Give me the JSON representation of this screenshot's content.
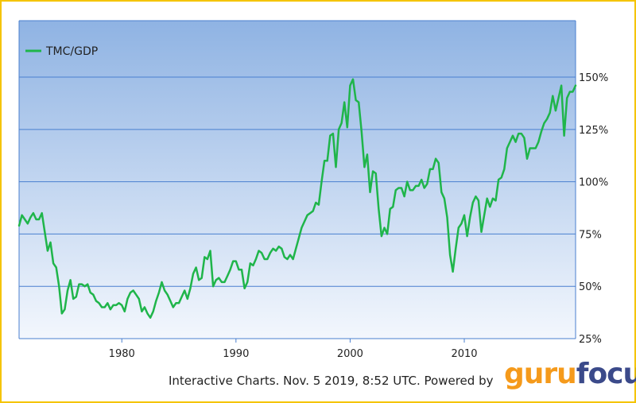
{
  "colors": {
    "line": "#1fb54a",
    "bg_top": "#8fb3e3",
    "bg_bottom": "#f3f7fd",
    "grid": "#4a7fcf",
    "frame": "#f5c400",
    "logo_guru": "#f59a1b",
    "logo_focus": "#3b4a8a"
  },
  "footer": {
    "text": "Interactive Charts. Nov. 5 2019, 8:52 UTC. Powered by"
  },
  "logo": {
    "part1": "guru",
    "part2": "focus"
  },
  "chart_data": {
    "type": "line",
    "title": "",
    "xlabel": "",
    "ylabel": "",
    "grid": true,
    "legend_position": "top-left",
    "xlim": [
      1971,
      2019.75
    ],
    "ylim": [
      25,
      177
    ],
    "x_ticks": [
      1980,
      1990,
      2000,
      2010
    ],
    "y_ticks": [
      25,
      50,
      75,
      100,
      125,
      150
    ],
    "y_tick_labels": [
      "25%",
      "50%",
      "75%",
      "100%",
      "125%",
      "150%"
    ],
    "series": [
      {
        "name": "TMC/GDP",
        "x": [
          1971.0,
          1971.25,
          1971.5,
          1971.75,
          1972.0,
          1972.25,
          1972.5,
          1972.75,
          1973.0,
          1973.25,
          1973.5,
          1973.75,
          1974.0,
          1974.25,
          1974.5,
          1974.75,
          1975.0,
          1975.25,
          1975.5,
          1975.75,
          1976.0,
          1976.25,
          1976.5,
          1976.75,
          1977.0,
          1977.25,
          1977.5,
          1977.75,
          1978.0,
          1978.25,
          1978.5,
          1978.75,
          1979.0,
          1979.25,
          1979.5,
          1979.75,
          1980.0,
          1980.25,
          1980.5,
          1980.75,
          1981.0,
          1981.25,
          1981.5,
          1981.75,
          1982.0,
          1982.25,
          1982.5,
          1982.75,
          1983.0,
          1983.25,
          1983.5,
          1983.75,
          1984.0,
          1984.25,
          1984.5,
          1984.75,
          1985.0,
          1985.25,
          1985.5,
          1985.75,
          1986.0,
          1986.25,
          1986.5,
          1986.75,
          1987.0,
          1987.25,
          1987.5,
          1987.75,
          1988.0,
          1988.25,
          1988.5,
          1988.75,
          1989.0,
          1989.25,
          1989.5,
          1989.75,
          1990.0,
          1990.25,
          1990.5,
          1990.75,
          1991.0,
          1991.25,
          1991.5,
          1991.75,
          1992.0,
          1992.25,
          1992.5,
          1992.75,
          1993.0,
          1993.25,
          1993.5,
          1993.75,
          1994.0,
          1994.25,
          1994.5,
          1994.75,
          1995.0,
          1995.25,
          1995.5,
          1995.75,
          1996.0,
          1996.25,
          1996.5,
          1996.75,
          1997.0,
          1997.25,
          1997.5,
          1997.75,
          1998.0,
          1998.25,
          1998.5,
          1998.75,
          1999.0,
          1999.25,
          1999.5,
          1999.75,
          2000.0,
          2000.25,
          2000.5,
          2000.75,
          2001.0,
          2001.25,
          2001.5,
          2001.75,
          2002.0,
          2002.25,
          2002.5,
          2002.75,
          2003.0,
          2003.25,
          2003.5,
          2003.75,
          2004.0,
          2004.25,
          2004.5,
          2004.75,
          2005.0,
          2005.25,
          2005.5,
          2005.75,
          2006.0,
          2006.25,
          2006.5,
          2006.75,
          2007.0,
          2007.25,
          2007.5,
          2007.75,
          2008.0,
          2008.25,
          2008.5,
          2008.75,
          2009.0,
          2009.25,
          2009.5,
          2009.75,
          2010.0,
          2010.25,
          2010.5,
          2010.75,
          2011.0,
          2011.25,
          2011.5,
          2011.75,
          2012.0,
          2012.25,
          2012.5,
          2012.75,
          2013.0,
          2013.25,
          2013.5,
          2013.75,
          2014.0,
          2014.25,
          2014.5,
          2014.75,
          2015.0,
          2015.25,
          2015.5,
          2015.75,
          2016.0,
          2016.25,
          2016.5,
          2016.75,
          2017.0,
          2017.25,
          2017.5,
          2017.75,
          2018.0,
          2018.25,
          2018.5,
          2018.75,
          2019.0,
          2019.25,
          2019.5,
          2019.75
        ],
        "y": [
          79,
          84,
          82,
          80,
          83,
          85,
          82,
          82,
          85,
          76,
          67,
          71,
          61,
          59,
          50,
          37,
          39,
          48,
          53,
          44,
          45,
          51,
          51,
          50,
          51,
          47,
          46,
          43,
          42,
          40,
          40,
          42,
          39,
          41,
          41,
          42,
          41,
          38,
          44,
          47,
          48,
          46,
          44,
          38,
          40,
          37,
          35,
          38,
          43,
          47,
          52,
          48,
          46,
          43,
          40,
          42,
          42,
          45,
          48,
          44,
          49,
          56,
          59,
          53,
          54,
          64,
          63,
          67,
          50,
          53,
          54,
          52,
          52,
          55,
          58,
          62,
          62,
          58,
          58,
          49,
          52,
          61,
          60,
          63,
          67,
          66,
          63,
          63,
          66,
          68,
          67,
          69,
          68,
          64,
          63,
          65,
          63,
          68,
          73,
          78,
          81,
          84,
          85,
          86,
          90,
          89,
          100,
          110,
          110,
          122,
          123,
          107,
          125,
          128,
          138,
          126,
          146,
          149,
          139,
          138,
          124,
          107,
          113,
          95,
          105,
          104,
          87,
          74,
          78,
          75,
          87,
          88,
          96,
          97,
          97,
          93,
          100,
          96,
          96,
          98,
          98,
          101,
          97,
          99,
          106,
          106,
          111,
          109,
          95,
          92,
          83,
          65,
          57,
          68,
          78,
          80,
          84,
          74,
          83,
          90,
          93,
          91,
          76,
          84,
          92,
          88,
          92,
          91,
          101,
          102,
          106,
          116,
          119,
          122,
          119,
          123,
          123,
          121,
          111,
          116,
          116,
          116,
          119,
          124,
          128,
          130,
          133,
          141,
          134,
          140,
          146,
          122,
          140,
          143,
          143,
          146
        ]
      }
    ]
  }
}
